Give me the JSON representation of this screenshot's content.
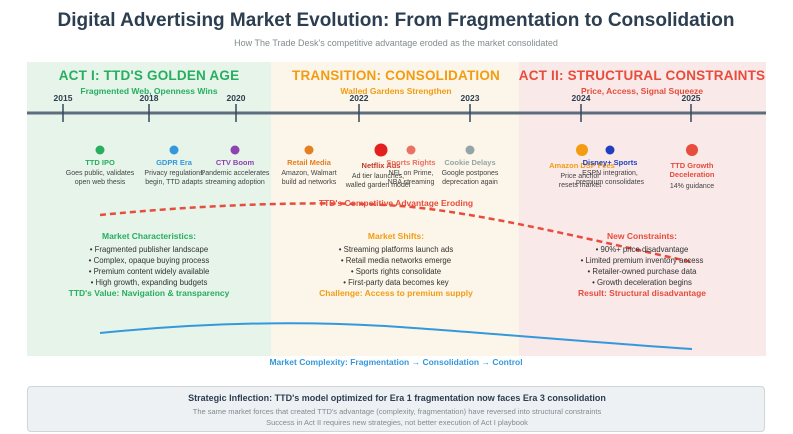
{
  "title": "Digital Advertising Market Evolution: From Fragmentation to Consolidation",
  "subtitle": "How The Trade Desk's competitive advantage eroded as the market consolidated",
  "acts": [
    {
      "title": "ACT I: TTD'S GOLDEN AGE",
      "subtitle": "Fragmented Web, Openness Wins",
      "color": "#27ae60"
    },
    {
      "title": "TRANSITION: CONSOLIDATION",
      "subtitle": "Walled Gardens Strengthen",
      "color": "#f39c12"
    },
    {
      "title": "ACT II: STRUCTURAL CONSTRAINTS",
      "subtitle": "Price, Access, Signal Squeeze",
      "color": "#e74c3c"
    }
  ],
  "years": [
    "2015",
    "2018",
    "2020",
    "2022",
    "2023",
    "2024",
    "2025"
  ],
  "events": [
    {
      "label": "TTD IPO",
      "desc": [
        "Goes public, validates",
        "open web thesis"
      ],
      "color": "#27ae60"
    },
    {
      "label": "GDPR Era",
      "desc": [
        "Privacy regulations",
        "begin, TTD adapts"
      ],
      "color": "#3498db"
    },
    {
      "label": "CTV Boom",
      "desc": [
        "Pandemic accelerates",
        "streaming adoption"
      ],
      "color": "#8e44ad"
    },
    {
      "label": "Retail Media",
      "desc": [
        "Amazon, Walmart",
        "build ad networks"
      ],
      "color": "#e67e22"
    },
    {
      "label": "Netflix Ads",
      "desc": [
        "Ad tier launches,",
        "walled garden model"
      ],
      "color": "#e74c3c"
    },
    {
      "label": "Sports Rights",
      "desc": [
        "NFL on Prime,",
        "NBA streaming"
      ],
      "color": "#ec7063"
    },
    {
      "label": "Cookie Delays",
      "desc": [
        "Google postpones",
        "deprecation again"
      ],
      "color": "#95a5a6"
    },
    {
      "label": "Amazon DSP Fees",
      "desc": [
        "Price anchor",
        "resets market"
      ],
      "color": "#f39c12"
    },
    {
      "label": "Disney+ Sports",
      "desc": [
        "ESPN integration,",
        "premium consolidates"
      ],
      "color": "#1f3fbf"
    },
    {
      "label": "TTD Growth",
      "label2": "Deceleration",
      "desc": [
        "14% guidance"
      ],
      "color": "#e74c3c"
    }
  ],
  "eroding_label": "TTD's Competitive Advantage Eroding",
  "sections": [
    {
      "title": "Market Characteristics:",
      "bullets": [
        "• Fragmented publisher landscape",
        "• Complex, opaque buying process",
        "• Premium content widely available",
        "• High growth, expanding budgets"
      ],
      "footer": "TTD's Value: Navigation & transparency",
      "title_color": "#27ae60",
      "footer_color": "#27ae60"
    },
    {
      "title": "Market Shifts:",
      "bullets": [
        "• Streaming platforms launch ads",
        "• Retail media networks emerge",
        "• Sports rights consolidate",
        "• First-party data becomes key"
      ],
      "footer": "Challenge: Access to premium supply",
      "title_color": "#f39c12",
      "footer_color": "#f39c12"
    },
    {
      "title": "New Constraints:",
      "bullets": [
        "• 90%+ price disadvantage",
        "• Limited premium inventory access",
        "• Retailer-owned purchase data",
        "• Growth deceleration begins"
      ],
      "footer": "Result: Structural disadvantage",
      "title_color": "#e74c3c",
      "footer_color": "#e74c3c"
    }
  ],
  "complexity_label": "Market Complexity: Fragmentation → Consolidation → Control",
  "strategic": {
    "title": "Strategic Inflection: TTD's model optimized for Era 1 fragmentation now faces Era 3 consolidation",
    "line1": "The same market forces that created TTD's advantage (complexity, fragmentation) have reversed into structural constraints",
    "line2": "Success in Act II requires new strategies, not better execution of Act I playbook"
  }
}
